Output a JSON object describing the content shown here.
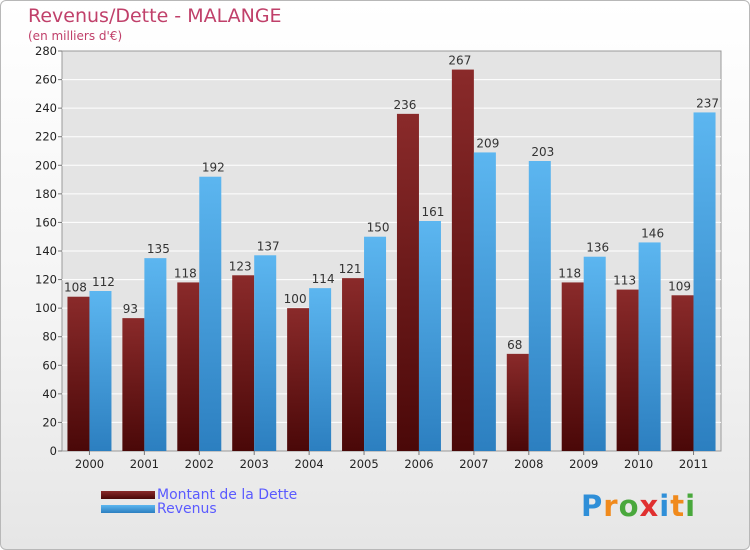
{
  "title": "Revenus/Dette - MALANGE",
  "subtitle": "(en milliers d'€)",
  "logo": {
    "text": "Proxiti",
    "letters": [
      {
        "char": "P",
        "color": "#2f8fd8"
      },
      {
        "char": "r",
        "color": "#f08a1c"
      },
      {
        "char": "o",
        "color": "#49a83c"
      },
      {
        "char": "x",
        "color": "#e03030"
      },
      {
        "char": "i",
        "color": "#2f8fd8"
      },
      {
        "char": "t",
        "color": "#f08a1c"
      },
      {
        "char": "i",
        "color": "#49a83c"
      }
    ]
  },
  "chart_data": {
    "type": "bar",
    "title": "Revenus/Dette - MALANGE",
    "subtitle": "(en milliers d'€)",
    "categories": [
      "2000",
      "2001",
      "2002",
      "2003",
      "2004",
      "2005",
      "2006",
      "2007",
      "2008",
      "2009",
      "2010",
      "2011"
    ],
    "series": [
      {
        "name": "Montant de la Dette",
        "color": "#7a1e1e",
        "values": [
          108,
          93,
          118,
          123,
          100,
          121,
          236,
          267,
          68,
          118,
          113,
          109
        ]
      },
      {
        "name": "Revenus",
        "color": "#4aa8e8",
        "values": [
          112,
          135,
          192,
          137,
          114,
          150,
          161,
          209,
          203,
          136,
          146,
          237
        ]
      }
    ],
    "ylim": [
      0,
      280
    ],
    "yticks": [
      0,
      20,
      40,
      60,
      80,
      100,
      120,
      140,
      160,
      180,
      200,
      220,
      240,
      260,
      280
    ],
    "grid": true,
    "legend_position": "bottom-left"
  }
}
